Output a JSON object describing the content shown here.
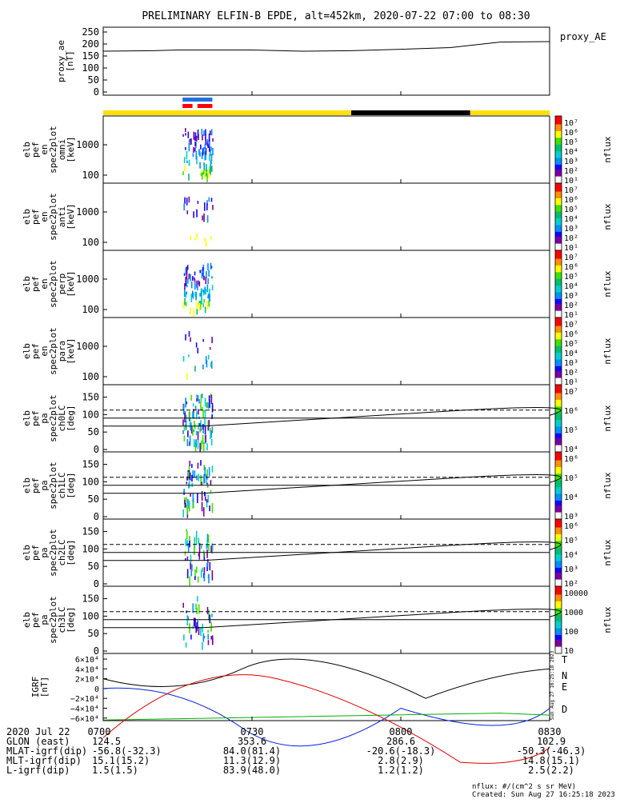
{
  "title": "PRELIMINARY ELFIN-B EPDE, alt=452km, 2020-07-22 07:00 to 08:30",
  "x_range": [
    "07:00",
    "08:30"
  ],
  "colors": {
    "colorbar": [
      "#ffffff",
      "#7a00a0",
      "#1a00ff",
      "#0090ff",
      "#00d0d0",
      "#00c070",
      "#40e000",
      "#ffff00",
      "#ff9000",
      "#ff0000"
    ]
  },
  "status_bars": {
    "science_zone_blue": {
      "start": "07:16",
      "end": "07:22",
      "color": "#1f6fe6"
    },
    "science_zone_red": [
      {
        "start": "07:16",
        "end": "07:18",
        "color": "#ff0000"
      },
      {
        "start": "07:19",
        "end": "07:22",
        "color": "#ff0000"
      }
    ],
    "day_night": [
      {
        "start": "07:00",
        "end": "07:50",
        "color": "#ffe000"
      },
      {
        "start": "07:50",
        "end": "08:14",
        "color": "#000000"
      },
      {
        "start": "08:14",
        "end": "08:30",
        "color": "#ffe000"
      }
    ]
  },
  "panels": [
    {
      "id": "ae",
      "ylabel": [
        "proxy_ae",
        "[nT]"
      ],
      "yticks": [
        "250",
        "200",
        "150",
        "100",
        "50",
        "0"
      ],
      "legend": "proxy_AE",
      "line": [
        [
          "07:00",
          170
        ],
        [
          "07:10",
          172
        ],
        [
          "07:15",
          175
        ],
        [
          "07:30",
          175
        ],
        [
          "07:40",
          170
        ],
        [
          "07:50",
          172
        ],
        [
          "08:00",
          178
        ],
        [
          "08:10",
          185
        ],
        [
          "08:20",
          208
        ],
        [
          "08:30",
          210
        ]
      ]
    },
    {
      "id": "omni",
      "ylabel": [
        "elb",
        "pef",
        "en",
        "spec2plot",
        "omni",
        "[keV]"
      ],
      "yticks": [
        "1000",
        "100"
      ],
      "cb_ticks": [
        "10⁷",
        "10⁶",
        "10⁵",
        "10⁴",
        "10³",
        "10²",
        "10¹"
      ],
      "cb_label": "nflux"
    },
    {
      "id": "anti",
      "ylabel": [
        "elb",
        "pef",
        "en",
        "spec2plot",
        "anti",
        "[keV]"
      ],
      "yticks": [
        "1000",
        "100"
      ],
      "cb_ticks": [
        "10⁷",
        "10⁶",
        "10⁵",
        "10⁴",
        "10³",
        "10²",
        "10¹"
      ],
      "cb_label": "nflux"
    },
    {
      "id": "perp",
      "ylabel": [
        "elb",
        "pef",
        "en",
        "spec2plot",
        "perp",
        "[keV]"
      ],
      "yticks": [
        "1000",
        "100"
      ],
      "cb_ticks": [
        "10⁷",
        "10⁶",
        "10⁵",
        "10⁴",
        "10³",
        "10²",
        "10¹"
      ],
      "cb_label": "nflux"
    },
    {
      "id": "para",
      "ylabel": [
        "elb",
        "pef",
        "en",
        "spec2plot",
        "para",
        "[keV]"
      ],
      "yticks": [
        "1000",
        "100"
      ],
      "cb_ticks": [
        "10⁷",
        "10⁶",
        "10⁵",
        "10⁴",
        "10³",
        "10²",
        "10¹"
      ],
      "cb_label": "nflux"
    },
    {
      "id": "ch0",
      "ylabel": [
        "elb",
        "pef",
        "pa",
        "spec2plot",
        "ch0LC",
        "[deg]"
      ],
      "yticks": [
        "150",
        "100",
        "50",
        "0"
      ],
      "cb_ticks": [
        "10⁷",
        "10⁶",
        "10⁵",
        "10⁴"
      ],
      "cb_label": "nflux"
    },
    {
      "id": "ch1",
      "ylabel": [
        "elb",
        "pef",
        "pa",
        "spec2plot",
        "ch1LC",
        "[deg]"
      ],
      "yticks": [
        "150",
        "100",
        "50",
        "0"
      ],
      "cb_ticks": [
        "10⁶",
        "10⁵",
        "10⁴",
        "10³"
      ],
      "cb_label": "nflux"
    },
    {
      "id": "ch2",
      "ylabel": [
        "elb",
        "pef",
        "pa",
        "spec2plot",
        "ch2LC",
        "[deg]"
      ],
      "yticks": [
        "150",
        "100",
        "50",
        "0"
      ],
      "cb_ticks": [
        "10⁶",
        "10⁵",
        "10⁴",
        "10³",
        "10²"
      ],
      "cb_label": "nflux"
    },
    {
      "id": "ch3",
      "ylabel": [
        "elb",
        "pef",
        "pa",
        "spec2plot",
        "ch3LC",
        "[deg]"
      ],
      "yticks": [
        "150",
        "100",
        "50",
        "0"
      ],
      "cb_ticks": [
        "10000",
        "1000",
        "100",
        "10"
      ],
      "cb_label": "nflux"
    },
    {
      "id": "igrf",
      "ylabel": [
        "IGRF",
        "[nT]"
      ],
      "yticks": [
        "6×10⁴",
        "4×10⁴",
        "2×10⁴",
        "0",
        "−2×10⁴",
        "−4×10⁴",
        "−6×10⁴"
      ],
      "legend": [
        "T",
        "N",
        "E",
        "D"
      ],
      "legend_colors": [
        "#000000",
        "#0020e0",
        "#00b000",
        "#e00000"
      ]
    }
  ],
  "side_stamp": "Sun Aug 27 16:25:18 2023",
  "chart_data": {
    "type": "line",
    "title": "PRELIMINARY ELFIN-B EPDE, alt=452km, 2020-07-22 07:00 to 08:30",
    "x_ticks": [
      "0700",
      "0730",
      "0800",
      "0830"
    ],
    "series": [
      {
        "name": "proxy_AE",
        "x": [
          "07:00",
          "07:10",
          "07:30",
          "07:40",
          "08:00",
          "08:20",
          "08:30"
        ],
        "values": [
          170,
          172,
          175,
          170,
          178,
          208,
          210
        ]
      }
    ]
  },
  "footer": {
    "date": "2020 Jul 22",
    "rows": [
      {
        "label": "GLON (east)",
        "values": [
          "124.5",
          "353.6",
          "286.6",
          "102.9"
        ]
      },
      {
        "label": "MLAT-igrf(dip)",
        "values": [
          "-56.8(-32.3)",
          "84.0(81.4)",
          "-20.6(-18.3)",
          "-50.3(-46.3)"
        ]
      },
      {
        "label": "MLT-igrf(dip)",
        "values": [
          "15.1(15.2)",
          "11.3(12.9)",
          "2.8(2.9)",
          "14.8(15.1)"
        ]
      },
      {
        "label": "L-igrf(dip)",
        "values": [
          "1.5(1.5)",
          "83.9(48.0)",
          "1.2(1.2)",
          "2.5(2.2)"
        ]
      }
    ],
    "nflux_units": "nflux: #/(cm^2 s sr MeV)",
    "created": "Created: Sun Aug 27 16:25:18 2023"
  }
}
